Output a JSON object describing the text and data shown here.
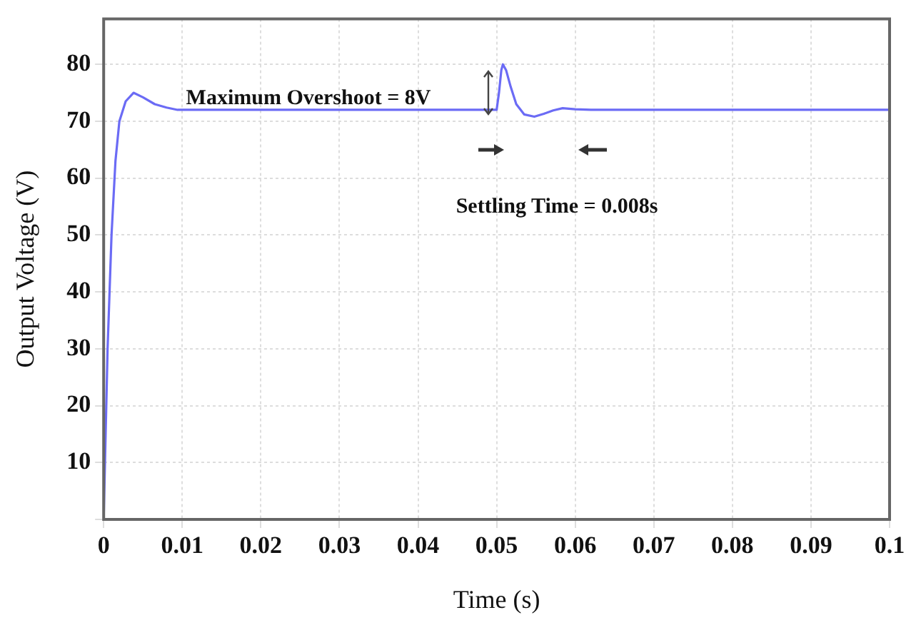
{
  "chart_data": {
    "type": "line",
    "xlabel": "Time (s)",
    "ylabel": "Output Voltage (V)",
    "x": [
      0,
      0.0002,
      0.0005,
      0.001,
      0.0015,
      0.002,
      0.0028,
      0.0038,
      0.005,
      0.0065,
      0.008,
      0.0094,
      0.02,
      0.03,
      0.04,
      0.05,
      0.0503,
      0.0506,
      0.0508,
      0.0512,
      0.0518,
      0.0525,
      0.0535,
      0.0548,
      0.056,
      0.0572,
      0.0584,
      0.06,
      0.062,
      0.065,
      0.08,
      0.1
    ],
    "series": [
      {
        "color": "#6b6bf5",
        "values": [
          0,
          12,
          30,
          50,
          63,
          70,
          73.5,
          75,
          74.2,
          73,
          72.4,
          72,
          72,
          72,
          72,
          72,
          75,
          79,
          80,
          79,
          76,
          73,
          71.2,
          70.8,
          71.3,
          71.9,
          72.3,
          72.1,
          72,
          72,
          72,
          72
        ]
      }
    ],
    "xlim": [
      0,
      0.1
    ],
    "xticks": [
      0,
      0.01,
      0.02,
      0.03,
      0.04,
      0.05,
      0.06,
      0.07,
      0.08,
      0.09,
      0.1
    ],
    "ylim": [
      0,
      88
    ],
    "yticks": [
      {
        "value": 0,
        "label": null
      },
      10,
      20,
      30,
      40,
      50,
      60,
      70,
      80
    ],
    "grid": true,
    "legend": false,
    "marker": "none",
    "line_style": "solid",
    "annotations": [
      "Maximum Overshoot = 8V",
      "Settling Time = 0.008s"
    ]
  }
}
